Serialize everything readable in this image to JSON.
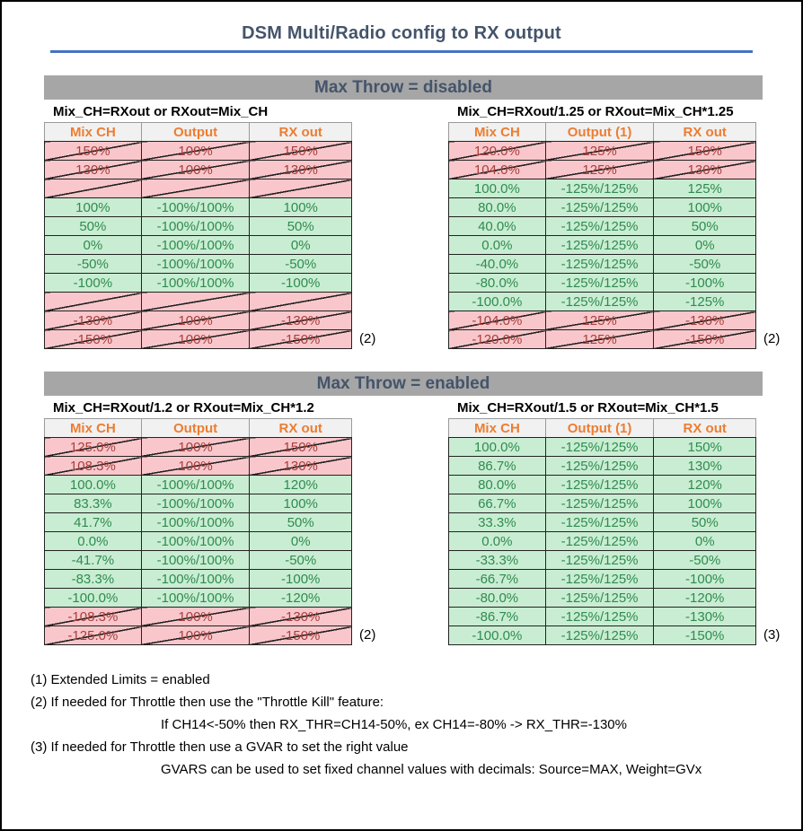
{
  "title": "DSM Multi/Radio config to RX output",
  "colors": {
    "heading-color": "#44546A",
    "accent-blue": "#4472C4",
    "banner-bg": "#A6A6A6",
    "header-bg": "#F1F1F1",
    "header-text": "#ED7D31",
    "valid-bg": "#C9EDD2",
    "valid-text": "#2F8B51",
    "invalid-bg": "#F9C7CB",
    "invalid-text": "#A6403D"
  },
  "sections": [
    {
      "banner": "Max Throw = disabled",
      "tables": [
        {
          "caption": "Mix_CH=RXout or RXout=Mix_CH",
          "headers": [
            "Mix CH",
            "Output",
            "RX out"
          ],
          "rows": [
            {
              "cells": [
                "150%",
                "100%",
                "150%"
              ],
              "state": "invalid"
            },
            {
              "cells": [
                "130%",
                "100%",
                "130%"
              ],
              "state": "invalid"
            },
            {
              "cells": [
                "",
                "",
                ""
              ],
              "state": "invalid"
            },
            {
              "cells": [
                "100%",
                "-100%/100%",
                "100%"
              ],
              "state": "valid"
            },
            {
              "cells": [
                "50%",
                "-100%/100%",
                "50%"
              ],
              "state": "valid"
            },
            {
              "cells": [
                "0%",
                "-100%/100%",
                "0%"
              ],
              "state": "valid"
            },
            {
              "cells": [
                "-50%",
                "-100%/100%",
                "-50%"
              ],
              "state": "valid"
            },
            {
              "cells": [
                "-100%",
                "-100%/100%",
                "-100%"
              ],
              "state": "valid"
            },
            {
              "cells": [
                "",
                "",
                ""
              ],
              "state": "invalid"
            },
            {
              "cells": [
                "-130%",
                "100%",
                "-130%"
              ],
              "state": "invalid",
              "note": "(2)"
            },
            {
              "cells": [
                "-150%",
                "100%",
                "-150%"
              ],
              "state": "invalid"
            }
          ]
        },
        {
          "caption": "Mix_CH=RXout/1.25 or RXout=Mix_CH*1.25",
          "headers": [
            "Mix CH",
            "Output (1)",
            "RX out"
          ],
          "rows": [
            {
              "cells": [
                "120.0%",
                "125%",
                "150%"
              ],
              "state": "invalid"
            },
            {
              "cells": [
                "104.0%",
                "125%",
                "130%"
              ],
              "state": "invalid"
            },
            {
              "cells": [
                "100.0%",
                "-125%/125%",
                "125%"
              ],
              "state": "valid"
            },
            {
              "cells": [
                "80.0%",
                "-125%/125%",
                "100%"
              ],
              "state": "valid"
            },
            {
              "cells": [
                "40.0%",
                "-125%/125%",
                "50%"
              ],
              "state": "valid"
            },
            {
              "cells": [
                "0.0%",
                "-125%/125%",
                "0%"
              ],
              "state": "valid"
            },
            {
              "cells": [
                "-40.0%",
                "-125%/125%",
                "-50%"
              ],
              "state": "valid"
            },
            {
              "cells": [
                "-80.0%",
                "-125%/125%",
                "-100%"
              ],
              "state": "valid"
            },
            {
              "cells": [
                "-100.0%",
                "-125%/125%",
                "-125%"
              ],
              "state": "valid"
            },
            {
              "cells": [
                "-104.0%",
                "125%",
                "-130%"
              ],
              "state": "invalid",
              "note": "(2)"
            },
            {
              "cells": [
                "-120.0%",
                "125%",
                "-150%"
              ],
              "state": "invalid"
            }
          ]
        }
      ]
    },
    {
      "banner": "Max Throw = enabled",
      "tables": [
        {
          "caption": "Mix_CH=RXout/1.2 or RXout=Mix_CH*1.2",
          "headers": [
            "Mix CH",
            "Output",
            "RX out"
          ],
          "rows": [
            {
              "cells": [
                "125.0%",
                "100%",
                "150%"
              ],
              "state": "invalid"
            },
            {
              "cells": [
                "108.3%",
                "100%",
                "130%"
              ],
              "state": "invalid"
            },
            {
              "cells": [
                "100.0%",
                "-100%/100%",
                "120%"
              ],
              "state": "valid"
            },
            {
              "cells": [
                "83.3%",
                "-100%/100%",
                "100%"
              ],
              "state": "valid"
            },
            {
              "cells": [
                "41.7%",
                "-100%/100%",
                "50%"
              ],
              "state": "valid"
            },
            {
              "cells": [
                "0.0%",
                "-100%/100%",
                "0%"
              ],
              "state": "valid"
            },
            {
              "cells": [
                "-41.7%",
                "-100%/100%",
                "-50%"
              ],
              "state": "valid"
            },
            {
              "cells": [
                "-83.3%",
                "-100%/100%",
                "-100%"
              ],
              "state": "valid"
            },
            {
              "cells": [
                "-100.0%",
                "-100%/100%",
                "-120%"
              ],
              "state": "valid"
            },
            {
              "cells": [
                "-108.3%",
                "100%",
                "-130%"
              ],
              "state": "invalid",
              "note": "(2)"
            },
            {
              "cells": [
                "-125.0%",
                "100%",
                "-150%"
              ],
              "state": "invalid"
            }
          ]
        },
        {
          "caption": "Mix_CH=RXout/1.5 or RXout=Mix_CH*1.5",
          "headers": [
            "Mix CH",
            "Output (1)",
            "RX out"
          ],
          "rows": [
            {
              "cells": [
                "100.0%",
                "-125%/125%",
                "150%"
              ],
              "state": "valid"
            },
            {
              "cells": [
                "86.7%",
                "-125%/125%",
                "130%"
              ],
              "state": "valid"
            },
            {
              "cells": [
                "80.0%",
                "-125%/125%",
                "120%"
              ],
              "state": "valid"
            },
            {
              "cells": [
                "66.7%",
                "-125%/125%",
                "100%"
              ],
              "state": "valid"
            },
            {
              "cells": [
                "33.3%",
                "-125%/125%",
                "50%"
              ],
              "state": "valid"
            },
            {
              "cells": [
                "0.0%",
                "-125%/125%",
                "0%"
              ],
              "state": "valid"
            },
            {
              "cells": [
                "-33.3%",
                "-125%/125%",
                "-50%"
              ],
              "state": "valid"
            },
            {
              "cells": [
                "-66.7%",
                "-125%/125%",
                "-100%"
              ],
              "state": "valid"
            },
            {
              "cells": [
                "-80.0%",
                "-125%/125%",
                "-120%"
              ],
              "state": "valid"
            },
            {
              "cells": [
                "-86.7%",
                "-125%/125%",
                "-130%"
              ],
              "state": "valid",
              "note": "(3)"
            },
            {
              "cells": [
                "-100.0%",
                "-125%/125%",
                "-150%"
              ],
              "state": "valid"
            }
          ]
        }
      ]
    }
  ],
  "footnotes": [
    {
      "text": "(1) Extended Limits = enabled",
      "indent": false
    },
    {
      "text": "(2) If needed for Throttle then use the \"Throttle Kill\" feature:",
      "indent": false
    },
    {
      "text": "If CH14<-50% then RX_THR=CH14-50%, ex CH14=-80% -> RX_THR=-130%",
      "indent": true
    },
    {
      "text": "(3) If needed for Throttle then use a GVAR to set the right value",
      "indent": false
    },
    {
      "text": "GVARS can be used to set fixed channel values with decimals: Source=MAX, Weight=GVx",
      "indent": true
    }
  ]
}
